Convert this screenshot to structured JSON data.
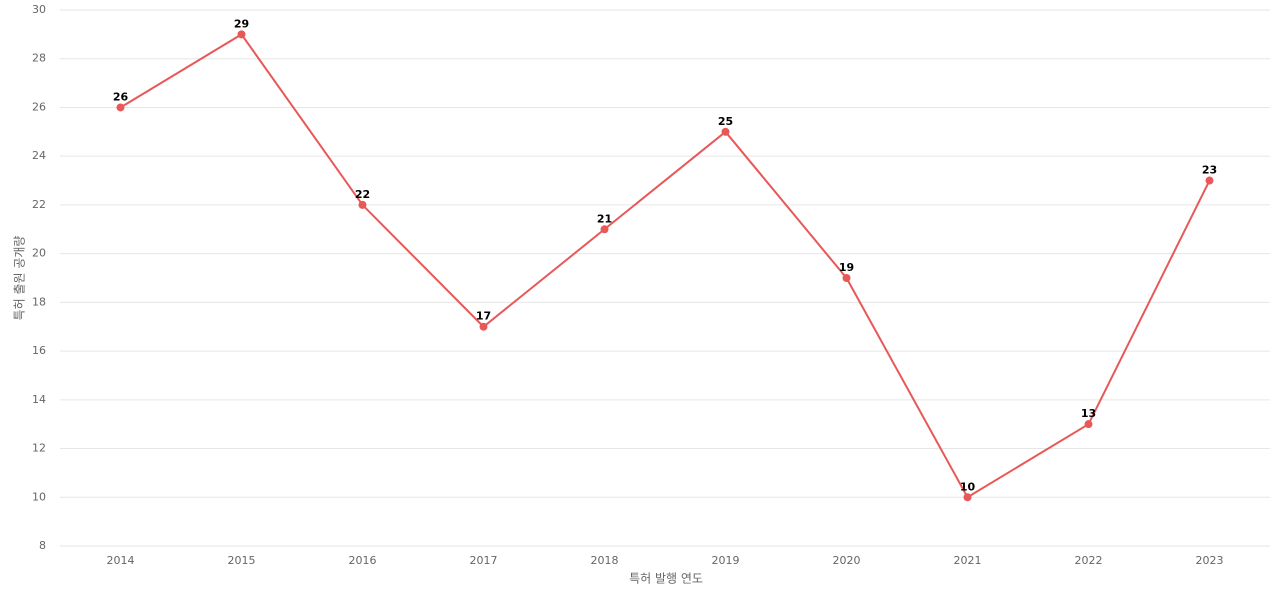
{
  "chart_data": {
    "type": "line",
    "x_label": "특허 발행 연도",
    "y_label": "특허 출원 공개량",
    "categories": [
      "2014",
      "2015",
      "2016",
      "2017",
      "2018",
      "2019",
      "2020",
      "2021",
      "2022",
      "2023"
    ],
    "values": [
      26,
      29,
      22,
      17,
      21,
      25,
      19,
      10,
      13,
      23
    ],
    "color": "#e85858",
    "ylim": [
      8,
      30
    ],
    "yticks": [
      8,
      10,
      12,
      14,
      16,
      18,
      20,
      22,
      24,
      26,
      28,
      30
    ],
    "grid": true,
    "data_labels": true
  }
}
